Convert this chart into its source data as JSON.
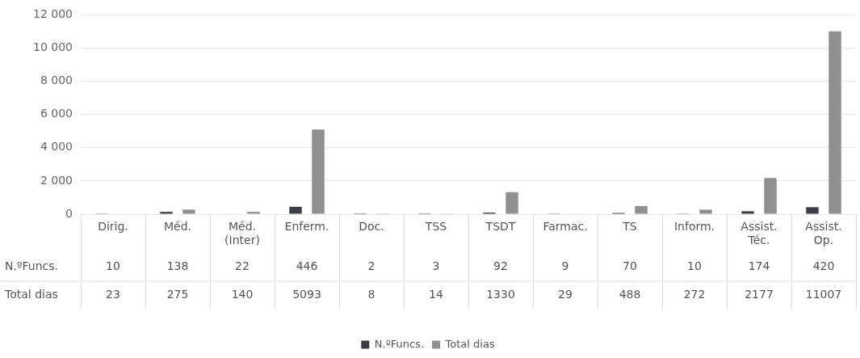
{
  "chart_data": {
    "type": "bar",
    "categories": [
      "Dirig.",
      "Méd.",
      "Méd. (Inter)",
      "Enferm.",
      "Doc.",
      "TSS",
      "TSDT",
      "Farmac.",
      "TS",
      "Inform.",
      "Assist. Téc.",
      "Assist. Op."
    ],
    "series": [
      {
        "name": "N.ºFuncs.",
        "color": "#3b3e45",
        "values": [
          10,
          138,
          22,
          446,
          2,
          3,
          92,
          9,
          70,
          10,
          174,
          420
        ]
      },
      {
        "name": "Total dias",
        "color": "#8f8f8f",
        "values": [
          23,
          275,
          140,
          5093,
          8,
          14,
          1330,
          29,
          488,
          272,
          2177,
          11007
        ]
      }
    ],
    "ylim": [
      0,
      12000
    ],
    "yticks": [
      0,
      {
        "value": 2000,
        "label": "2 000"
      },
      {
        "value": 4000,
        "label": "4 000"
      },
      {
        "value": 6000,
        "label": "6 000"
      },
      {
        "value": 8000,
        "label": "8 000"
      },
      {
        "value": 10000,
        "label": "10 000"
      },
      {
        "value": 12000,
        "label": "12 000"
      }
    ],
    "grid": "y",
    "legend": "bottom",
    "data_labels": true
  }
}
